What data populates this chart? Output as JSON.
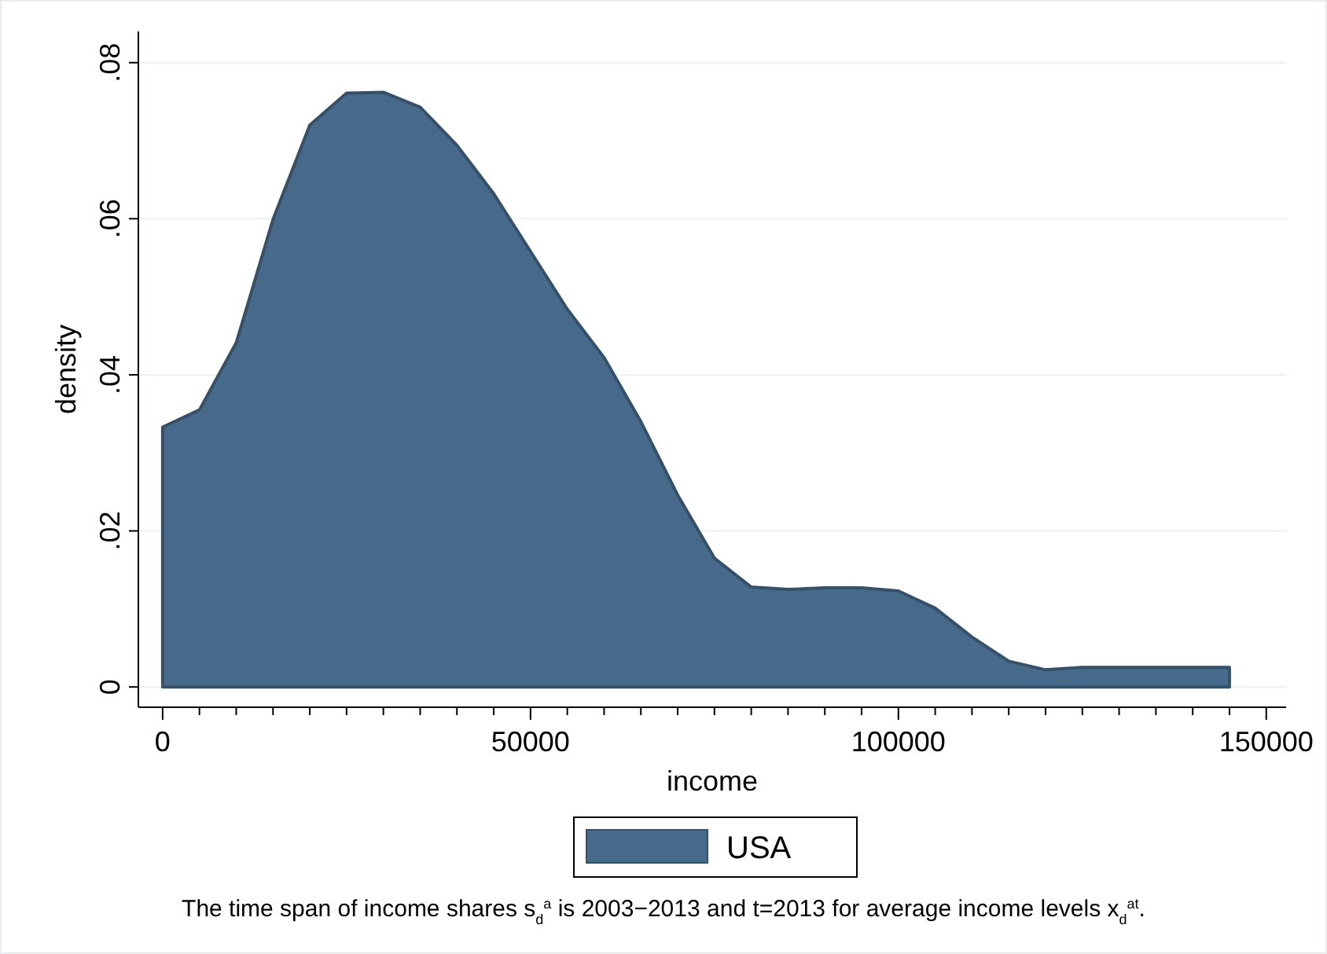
{
  "chart_data": {
    "type": "area",
    "xlabel": "income",
    "ylabel": "density",
    "x": [
      0,
      5000,
      10000,
      15000,
      20000,
      25000,
      30000,
      35000,
      40000,
      45000,
      50000,
      55000,
      60000,
      65000,
      70000,
      75000,
      80000,
      85000,
      90000,
      95000,
      100000,
      105000,
      110000,
      115000,
      120000,
      125000,
      130000,
      135000,
      140000,
      145000
    ],
    "series": [
      {
        "name": "USA",
        "color": "#476a8a",
        "values": [
          0.0333,
          0.0355,
          0.0441,
          0.0599,
          0.072,
          0.0761,
          0.0762,
          0.0743,
          0.0694,
          0.0632,
          0.0558,
          0.0484,
          0.0422,
          0.034,
          0.0246,
          0.0165,
          0.0128,
          0.0125,
          0.0127,
          0.0127,
          0.0123,
          0.0101,
          0.0064,
          0.0033,
          0.0022,
          0.0025,
          0.0025,
          0.0025,
          0.0025,
          0.0025
        ]
      }
    ],
    "xlim": [
      -3300,
      152700
    ],
    "ylim": [
      -0.0026,
      0.084
    ],
    "xticks": [
      0,
      {
        "value": 5000,
        "label": null
      },
      {
        "value": 10000,
        "label": null
      },
      {
        "value": 15000,
        "label": null
      },
      {
        "value": 20000,
        "label": null
      },
      {
        "value": 25000,
        "label": null
      },
      {
        "value": 30000,
        "label": null
      },
      {
        "value": 35000,
        "label": null
      },
      {
        "value": 40000,
        "label": null
      },
      {
        "value": 45000,
        "label": null
      },
      50000,
      {
        "value": 55000,
        "label": null
      },
      {
        "value": 60000,
        "label": null
      },
      {
        "value": 65000,
        "label": null
      },
      {
        "value": 70000,
        "label": null
      },
      {
        "value": 75000,
        "label": null
      },
      {
        "value": 80000,
        "label": null
      },
      {
        "value": 85000,
        "label": null
      },
      {
        "value": 90000,
        "label": null
      },
      {
        "value": 95000,
        "label": null
      },
      100000,
      {
        "value": 105000,
        "label": null
      },
      {
        "value": 110000,
        "label": null
      },
      {
        "value": 115000,
        "label": null
      },
      {
        "value": 120000,
        "label": null
      },
      {
        "value": 125000,
        "label": null
      },
      {
        "value": 130000,
        "label": null
      },
      {
        "value": 135000,
        "label": null
      },
      {
        "value": 140000,
        "label": null
      },
      {
        "value": 145000,
        "label": null
      },
      150000
    ],
    "yticks": [
      {
        "value": 0,
        "label": "0"
      },
      {
        "value": 0.02,
        "label": ".02"
      },
      {
        "value": 0.04,
        "label": ".04"
      },
      {
        "value": 0.06,
        "label": ".06"
      },
      {
        "value": 0.08,
        "label": ".08"
      }
    ],
    "grid": "y",
    "legend": "bottom",
    "annotations": [
      "The time span of income shares s$_{d}$$^{a}$ is 2003−2013 and t=2013 for average income levels x$_{d}$$^{at}$."
    ]
  }
}
